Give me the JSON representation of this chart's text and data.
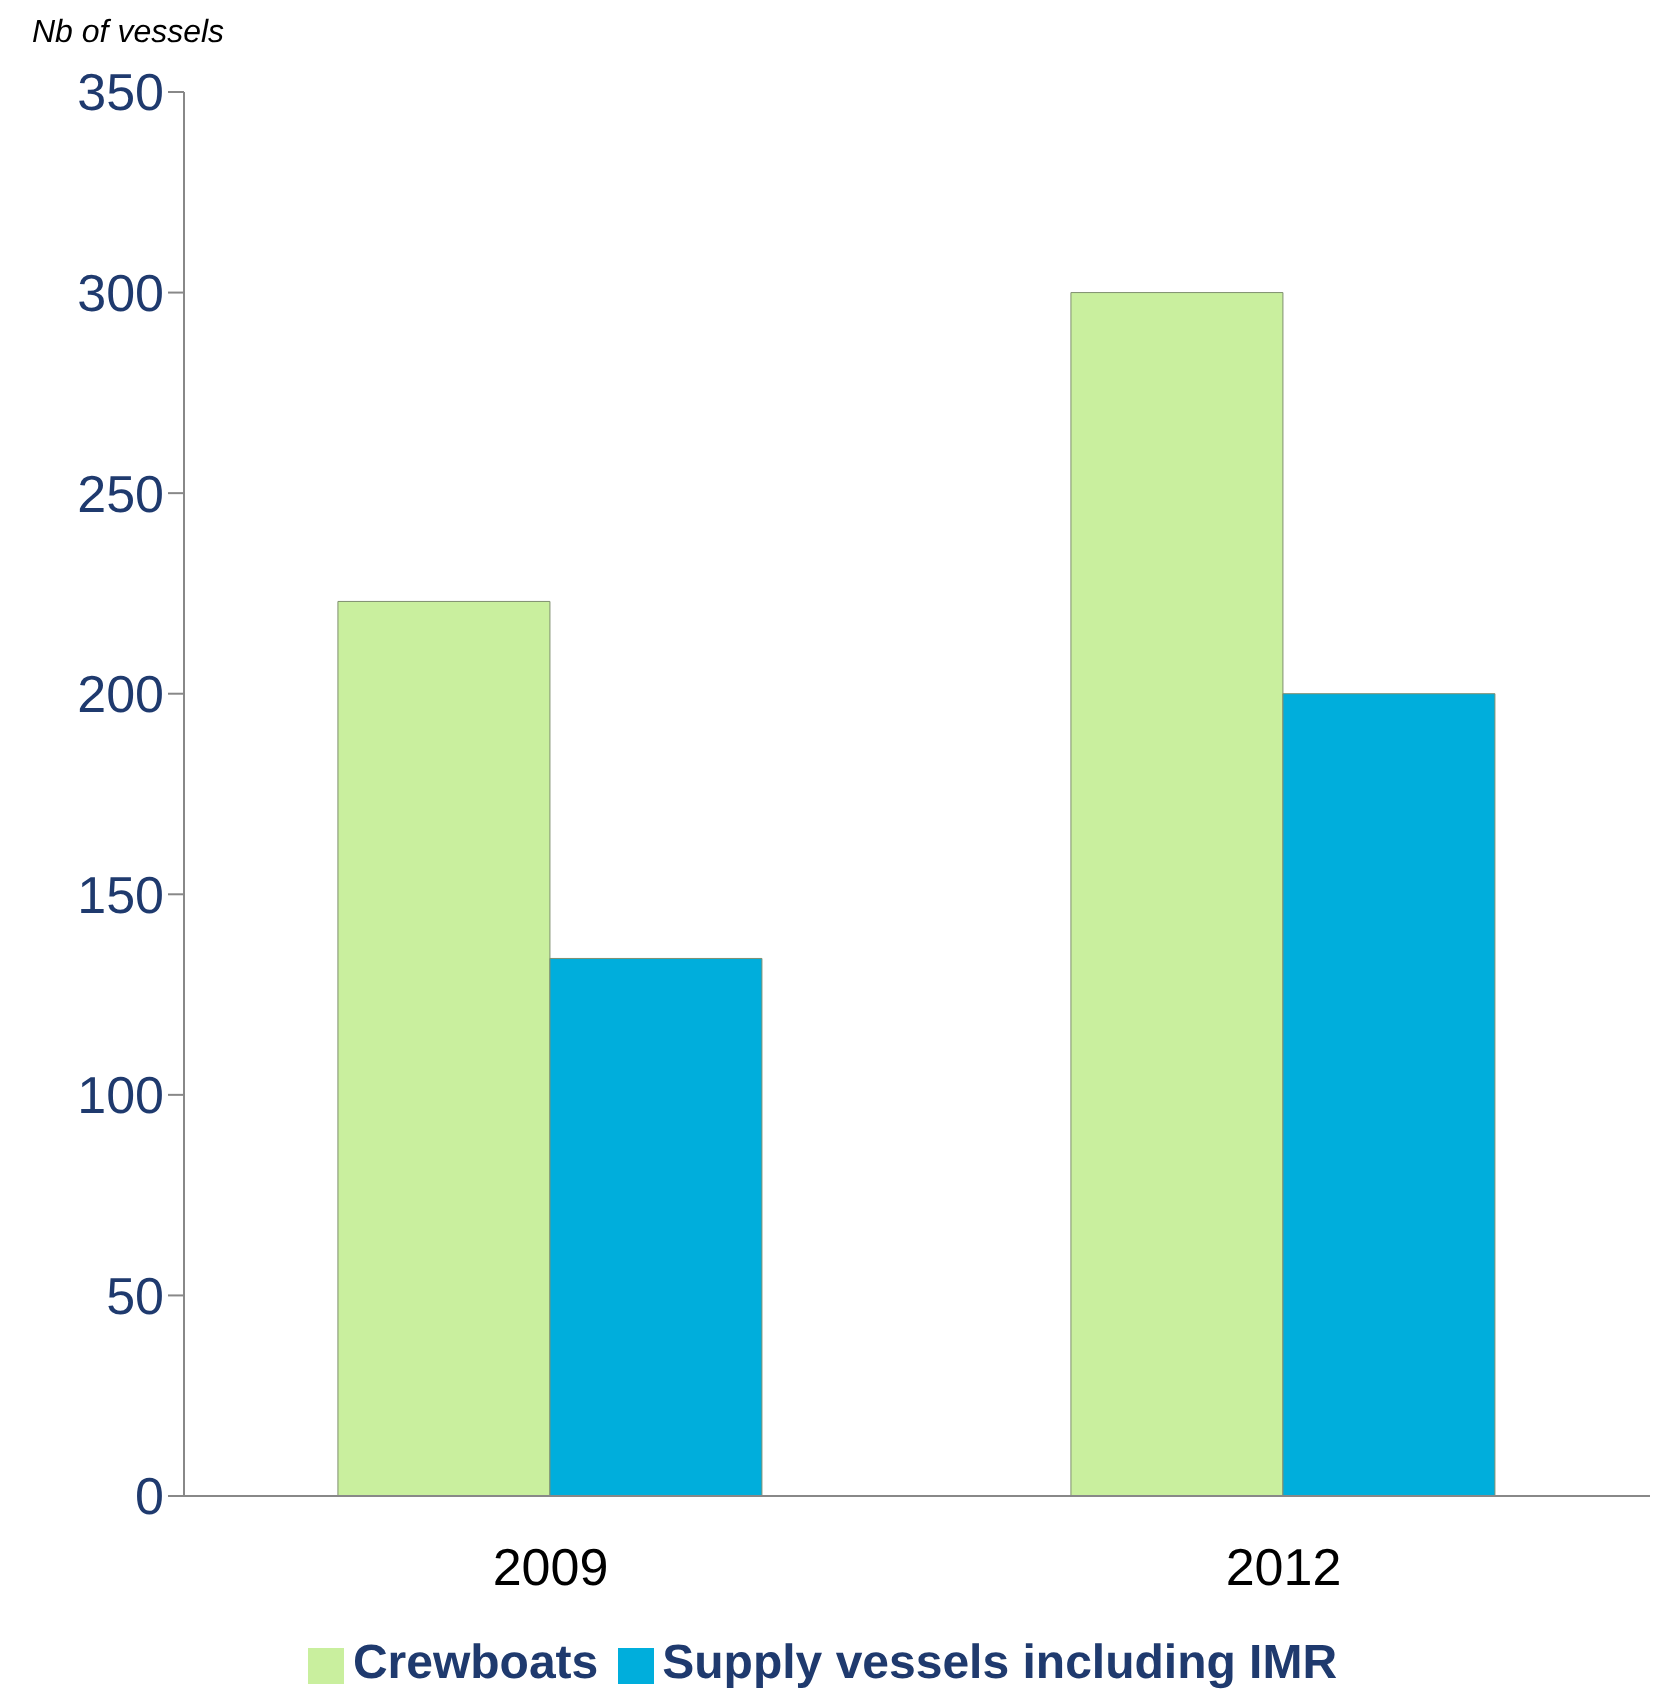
{
  "chart_data": {
    "type": "bar",
    "ylabel": "Nb of vessels",
    "categories": [
      "2009",
      "2012"
    ],
    "series": [
      {
        "name": "Crewboats",
        "color": "#c9ef9e",
        "values": [
          223,
          300
        ]
      },
      {
        "name": "Supply vessels including IMR",
        "color": "#00aedc",
        "values": [
          134,
          200
        ]
      }
    ],
    "ylim": [
      0,
      350
    ],
    "yticks": [
      0,
      50,
      100,
      150,
      200,
      250,
      300,
      350
    ],
    "grid": false,
    "legend": "bottom"
  }
}
